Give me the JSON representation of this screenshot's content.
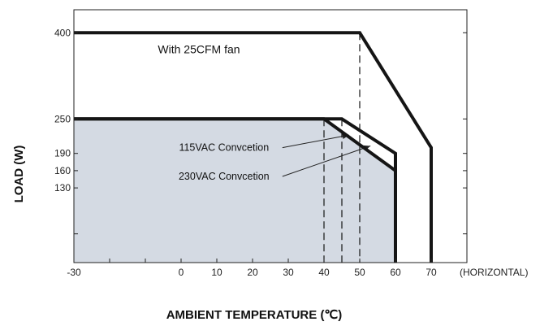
{
  "chart_data": {
    "type": "line",
    "xlabel": "AMBIENT TEMPERATURE (℃)",
    "ylabel": "LOAD (W)",
    "x_unit_note": "(HORIZONTAL)",
    "xlim": [
      -30,
      80
    ],
    "ylim": [
      0,
      440
    ],
    "x_ticks": [
      -30,
      -20,
      -10,
      0,
      10,
      20,
      30,
      40,
      50,
      60,
      70,
      80
    ],
    "x_tick_labels": [
      "-30",
      "0",
      "10",
      "20",
      "30",
      "40",
      "50",
      "60",
      "70"
    ],
    "x_tick_label_values": [
      -30,
      0,
      10,
      20,
      30,
      40,
      50,
      60,
      70
    ],
    "y_ticks": [
      50,
      130,
      160,
      190,
      250,
      400
    ],
    "y_tick_labels": [
      "130",
      "160",
      "190",
      "250",
      "400"
    ],
    "y_tick_label_values": [
      130,
      160,
      190,
      250,
      400
    ],
    "grid": false,
    "series": [
      {
        "name": "With 25CFM fan",
        "points": [
          [
            -30,
            400
          ],
          [
            50,
            400
          ],
          [
            70,
            200
          ],
          [
            70,
            0
          ]
        ]
      },
      {
        "name": "230VAC Convection",
        "points": [
          [
            -30,
            250
          ],
          [
            45,
            250
          ],
          [
            60,
            190
          ],
          [
            60,
            0
          ]
        ]
      },
      {
        "name": "115VAC Convection",
        "points": [
          [
            -30,
            250
          ],
          [
            40,
            250
          ],
          [
            60,
            160
          ],
          [
            60,
            0
          ]
        ]
      }
    ],
    "dashed_guides": [
      [
        40,
        250
      ],
      [
        45,
        250
      ],
      [
        50,
        400
      ]
    ],
    "shaded_region": [
      [
        -30,
        0
      ],
      [
        -30,
        250
      ],
      [
        40,
        250
      ],
      [
        60,
        160
      ],
      [
        60,
        0
      ]
    ],
    "annotations": [
      {
        "text": "With 25CFM fan",
        "at": [
          5,
          370
        ]
      },
      {
        "text": "115VAC Convcetion",
        "at": [
          12,
          200
        ],
        "arrow_to": [
          47,
          222
        ]
      },
      {
        "text": "230VAC Convcetion",
        "at": [
          12,
          150
        ],
        "arrow_to": [
          53,
          203
        ]
      }
    ],
    "colors": {
      "line": "#151515",
      "fill": "#d4dae3",
      "dash": "#151515"
    }
  }
}
